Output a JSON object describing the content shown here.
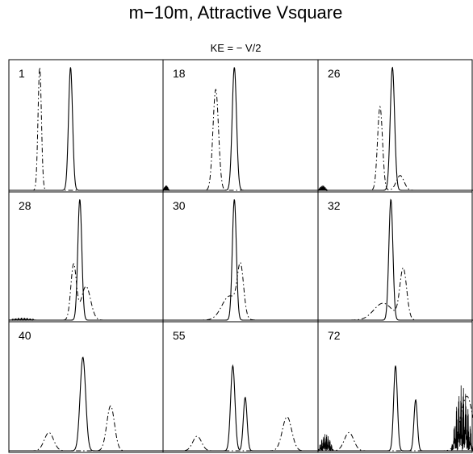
{
  "chart_data": {
    "type": "line",
    "title": "m−10m, Attractive Vsquare",
    "subtitle": "KE = − V/2",
    "xlabel": "",
    "ylabel": "",
    "grid": false,
    "layout": "3x3 panel grid",
    "series_styles": [
      {
        "style": "solid"
      },
      {
        "style": "dash-dot"
      }
    ],
    "panels": [
      {
        "label": "1",
        "solid": [
          {
            "x": 0.4,
            "h": 1.0,
            "w": 0.013
          }
        ],
        "dashdot": [
          {
            "x": 0.2,
            "h": 1.0,
            "w": 0.011
          }
        ],
        "noise": []
      },
      {
        "label": "18",
        "solid": [
          {
            "x": 0.46,
            "h": 1.0,
            "w": 0.014
          }
        ],
        "dashdot": [
          {
            "x": 0.34,
            "h": 0.82,
            "w": 0.018
          }
        ],
        "noise": [
          {
            "x0": 0.0,
            "x1": 0.04,
            "h": 0.04
          }
        ]
      },
      {
        "label": "26",
        "solid": [
          {
            "x": 0.48,
            "h": 1.0,
            "w": 0.014
          }
        ],
        "dashdot": [
          {
            "x": 0.4,
            "h": 0.68,
            "w": 0.016
          },
          {
            "x": 0.53,
            "h": 0.12,
            "w": 0.025
          }
        ],
        "noise": [
          {
            "x0": 0.0,
            "x1": 0.06,
            "h": 0.04
          }
        ]
      },
      {
        "label": "28",
        "solid": [
          {
            "x": 0.46,
            "h": 1.0,
            "w": 0.013
          }
        ],
        "dashdot": [
          {
            "x": 0.42,
            "h": 0.46,
            "w": 0.018
          },
          {
            "x": 0.5,
            "h": 0.28,
            "w": 0.03
          }
        ],
        "noise": [
          {
            "x0": 0.0,
            "x1": 0.18,
            "h": 0.02
          }
        ]
      },
      {
        "label": "30",
        "solid": [
          {
            "x": 0.46,
            "h": 1.0,
            "w": 0.013
          }
        ],
        "dashdot": [
          {
            "x": 0.43,
            "h": 0.2,
            "w": 0.05
          },
          {
            "x": 0.5,
            "h": 0.4,
            "w": 0.02
          }
        ],
        "noise": []
      },
      {
        "label": "32",
        "solid": [
          {
            "x": 0.47,
            "h": 1.0,
            "w": 0.013
          }
        ],
        "dashdot": [
          {
            "x": 0.42,
            "h": 0.14,
            "w": 0.06
          },
          {
            "x": 0.55,
            "h": 0.42,
            "w": 0.022
          }
        ],
        "noise": []
      },
      {
        "label": "40",
        "solid": [
          {
            "x": 0.48,
            "h": 0.77,
            "w": 0.018
          }
        ],
        "dashdot": [
          {
            "x": 0.26,
            "h": 0.15,
            "w": 0.03
          },
          {
            "x": 0.66,
            "h": 0.37,
            "w": 0.025
          }
        ],
        "noise": []
      },
      {
        "label": "55",
        "solid": [
          {
            "x": 0.45,
            "h": 0.7,
            "w": 0.014
          },
          {
            "x": 0.53,
            "h": 0.44,
            "w": 0.012
          }
        ],
        "dashdot": [
          {
            "x": 0.22,
            "h": 0.12,
            "w": 0.028
          },
          {
            "x": 0.8,
            "h": 0.28,
            "w": 0.03
          }
        ],
        "noise": []
      },
      {
        "label": "72",
        "solid": [
          {
            "x": 0.5,
            "h": 0.7,
            "w": 0.012
          },
          {
            "x": 0.63,
            "h": 0.42,
            "w": 0.011
          }
        ],
        "dashdot": [
          {
            "x": 0.2,
            "h": 0.15,
            "w": 0.03
          },
          {
            "x": 0.96,
            "h": 0.45,
            "w": 0.04
          }
        ],
        "noise": [
          {
            "x0": 0.0,
            "x1": 0.1,
            "h": 0.14
          },
          {
            "x0": 0.86,
            "x1": 1.0,
            "h": 0.55
          }
        ]
      }
    ]
  }
}
